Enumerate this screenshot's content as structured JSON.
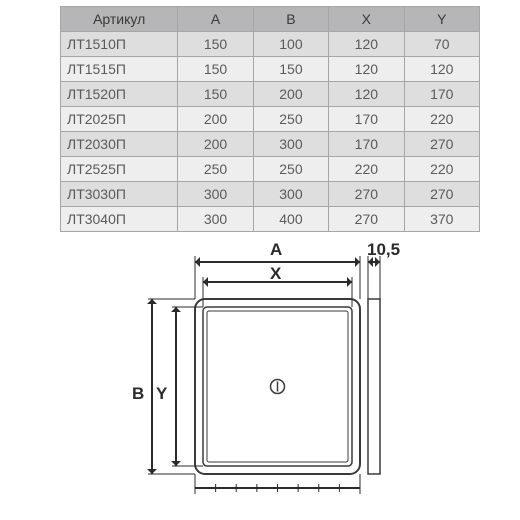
{
  "colors": {
    "head_bg": "#b6b5b7",
    "head_fg": "#3a3938",
    "border": "#a6a6a6",
    "row_even": "#dedede",
    "row_odd": "#eeeeee",
    "cell_fg": "#5b5a58",
    "panel_line": "#3a3a3a",
    "dim_line": "#2b2b2b",
    "bg": "#ffffff"
  },
  "table": {
    "columns": [
      "Артикул",
      "A",
      "B",
      "X",
      "Y"
    ],
    "rows": [
      [
        "ЛТ1510П",
        "150",
        "100",
        "120",
        "70"
      ],
      [
        "ЛТ1515П",
        "150",
        "150",
        "120",
        "120"
      ],
      [
        "ЛТ1520П",
        "150",
        "200",
        "120",
        "170"
      ],
      [
        "ЛТ2025П",
        "200",
        "250",
        "170",
        "220"
      ],
      [
        "ЛТ2030П",
        "200",
        "300",
        "170",
        "270"
      ],
      [
        "ЛТ2525П",
        "250",
        "250",
        "220",
        "220"
      ],
      [
        "ЛТ3030П",
        "300",
        "300",
        "270",
        "270"
      ],
      [
        "ЛТ3040П",
        "300",
        "400",
        "270",
        "370"
      ]
    ]
  },
  "diagram": {
    "labels": {
      "A": "A",
      "B": "B",
      "X": "X",
      "Y": "Y",
      "depth": "10,5"
    },
    "panel": {
      "w": 165,
      "h": 175
    },
    "stroke_width": 2
  }
}
